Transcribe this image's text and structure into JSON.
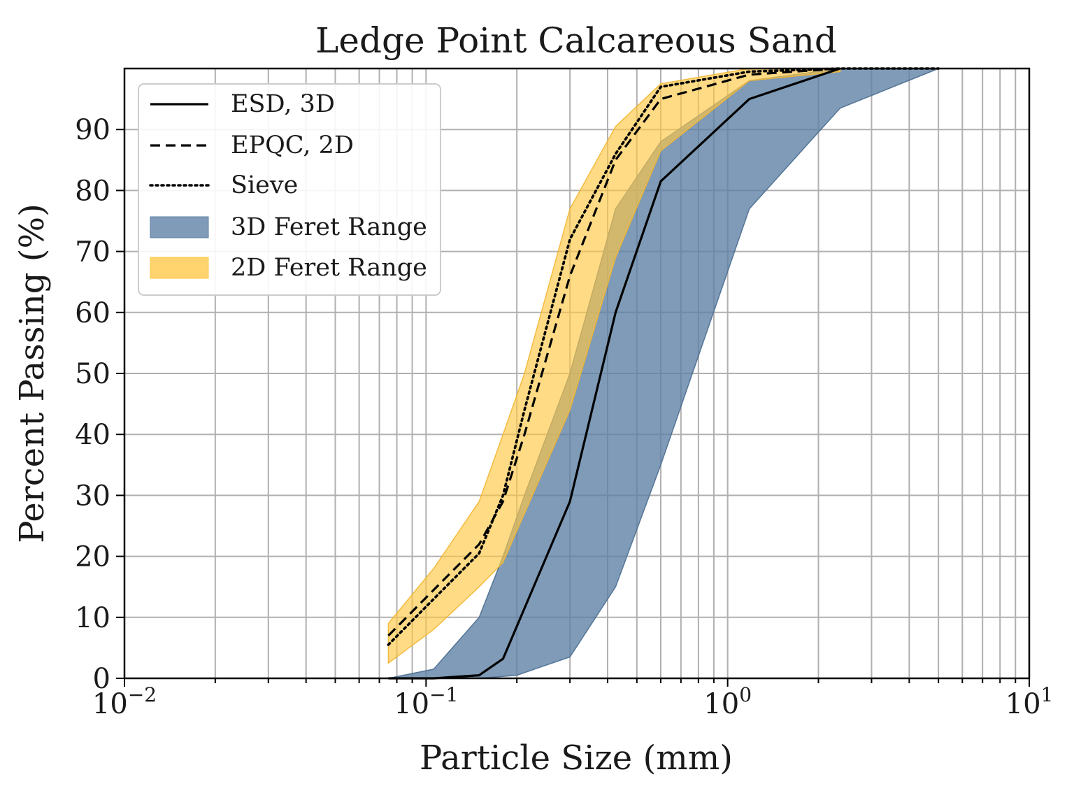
{
  "chart_data": {
    "type": "line",
    "title": "Ledge Point Calcareous Sand",
    "xlabel": "Particle Size (mm)",
    "ylabel": "Percent Passing (%)",
    "xscale": "log",
    "xlim": [
      0.01,
      10
    ],
    "ylim": [
      0,
      100
    ],
    "x_ticks": [
      {
        "value": 0.01,
        "base": "10",
        "exp": "−2"
      },
      {
        "value": 0.1,
        "base": "10",
        "exp": "−1"
      },
      {
        "value": 1,
        "base": "10",
        "exp": "0"
      },
      {
        "value": 10,
        "base": "10",
        "exp": "1"
      }
    ],
    "y_ticks": [
      0,
      10,
      20,
      30,
      40,
      50,
      60,
      70,
      80,
      90
    ],
    "grid": true,
    "legend_position": "top-left",
    "bands": [
      {
        "name": "3D Feret Range",
        "color": "#5b7fa3",
        "opacity": 0.78,
        "stroke": "#4a6d90",
        "upper": [
          [
            0.075,
            0.0
          ],
          [
            0.106,
            1.5
          ],
          [
            0.15,
            10.0
          ],
          [
            0.18,
            20.0
          ],
          [
            0.212,
            30.0
          ],
          [
            0.3,
            50.0
          ],
          [
            0.425,
            77.0
          ],
          [
            0.6,
            88.0
          ],
          [
            1.18,
            98.0
          ],
          [
            2.36,
            100.0
          ]
        ],
        "lower": [
          [
            0.075,
            0.0
          ],
          [
            0.106,
            0.0
          ],
          [
            0.15,
            0.0
          ],
          [
            0.2,
            0.5
          ],
          [
            0.3,
            3.5
          ],
          [
            0.425,
            15.0
          ],
          [
            0.6,
            35.0
          ],
          [
            1.18,
            77.0
          ],
          [
            2.36,
            93.5
          ],
          [
            5.0,
            100.0
          ]
        ]
      },
      {
        "name": "2D Feret Range",
        "color": "#ffc845",
        "opacity": 0.65,
        "stroke": "#f2b632",
        "upper": [
          [
            0.075,
            9.0
          ],
          [
            0.106,
            18.0
          ],
          [
            0.15,
            29.0
          ],
          [
            0.18,
            40.0
          ],
          [
            0.212,
            50.0
          ],
          [
            0.3,
            77.0
          ],
          [
            0.425,
            90.5
          ],
          [
            0.6,
            97.5
          ],
          [
            1.18,
            100.0
          ],
          [
            2.36,
            100.0
          ]
        ],
        "lower": [
          [
            0.075,
            2.5
          ],
          [
            0.106,
            8.0
          ],
          [
            0.15,
            15.0
          ],
          [
            0.18,
            19.0
          ],
          [
            0.3,
            44.0
          ],
          [
            0.425,
            69.0
          ],
          [
            0.6,
            86.5
          ],
          [
            1.18,
            98.0
          ],
          [
            2.36,
            99.5
          ]
        ]
      }
    ],
    "series": [
      {
        "name": "ESD, 3D",
        "style": "solid",
        "points": [
          [
            0.075,
            0.0
          ],
          [
            0.106,
            0.0
          ],
          [
            0.15,
            0.5
          ],
          [
            0.18,
            3.2
          ],
          [
            0.3,
            29.0
          ],
          [
            0.425,
            60.0
          ],
          [
            0.6,
            81.5
          ],
          [
            1.18,
            95.0
          ],
          [
            2.36,
            100.0
          ]
        ]
      },
      {
        "name": "EPQC, 2D",
        "style": "dashed",
        "points": [
          [
            0.075,
            7.0
          ],
          [
            0.106,
            14.5
          ],
          [
            0.15,
            22.0
          ],
          [
            0.18,
            29.0
          ],
          [
            0.212,
            40.0
          ],
          [
            0.3,
            66.0
          ],
          [
            0.425,
            85.0
          ],
          [
            0.6,
            95.0
          ],
          [
            1.18,
            99.0
          ],
          [
            2.36,
            100.0
          ]
        ]
      },
      {
        "name": "Sieve",
        "style": "dotted",
        "points": [
          [
            0.075,
            5.5
          ],
          [
            0.106,
            13.0
          ],
          [
            0.15,
            20.5
          ],
          [
            0.18,
            30.0
          ],
          [
            0.212,
            44.0
          ],
          [
            0.3,
            72.0
          ],
          [
            0.425,
            86.0
          ],
          [
            0.6,
            97.0
          ],
          [
            1.18,
            99.5
          ],
          [
            2.36,
            100.0
          ],
          [
            5.0,
            100.0
          ]
        ]
      }
    ],
    "legend": [
      {
        "label": "ESD, 3D",
        "kind": "line",
        "style": "solid"
      },
      {
        "label": "EPQC, 2D",
        "kind": "line",
        "style": "dashed"
      },
      {
        "label": "Sieve",
        "kind": "line",
        "style": "dotted"
      },
      {
        "label": "3D Feret Range",
        "kind": "patch",
        "color": "#5b7fa3"
      },
      {
        "label": "2D Feret Range",
        "kind": "patch",
        "color": "#ffc845"
      }
    ]
  }
}
